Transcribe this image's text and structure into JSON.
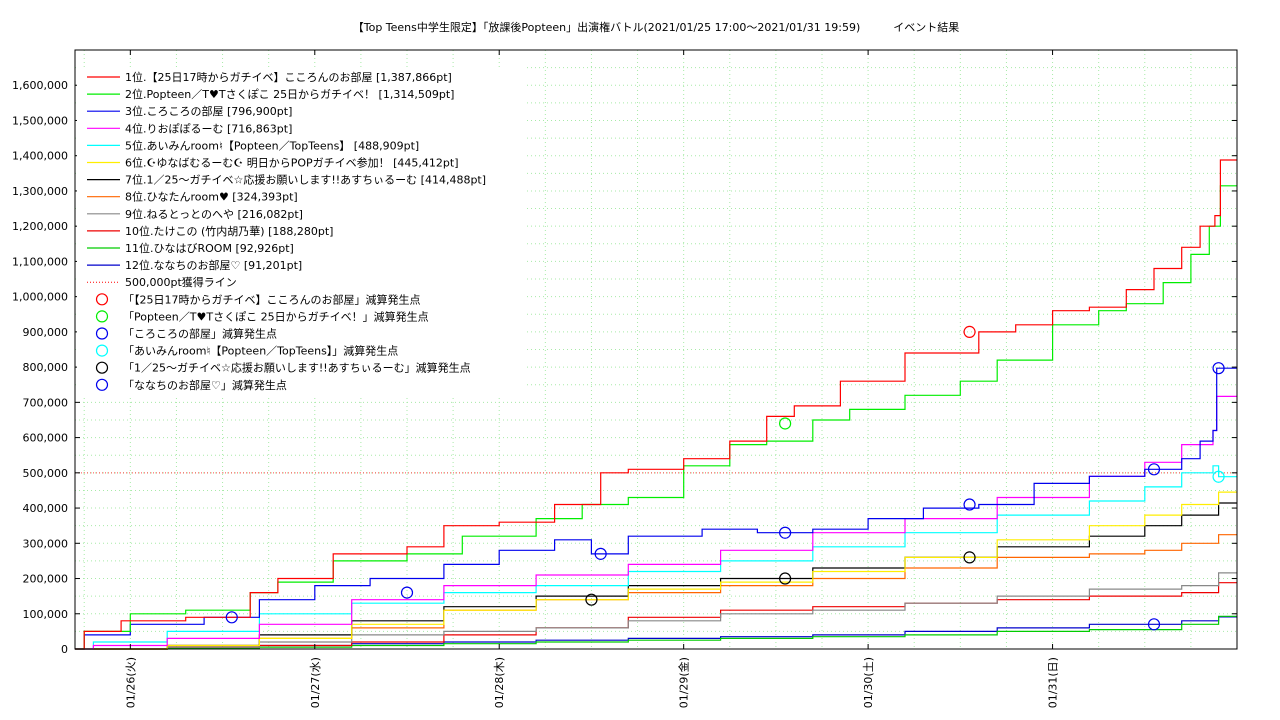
{
  "chart_data": {
    "type": "line",
    "title": "【Top Teens中学生限定】「放課後Popteen」出演権バトル(2021/01/25 17:00〜2021/01/31 19:59)　　　イベント結果",
    "xlabel": "",
    "ylabel": "",
    "xlim": [
      0.0,
      6.3
    ],
    "ylim": [
      0,
      1700000
    ],
    "grid": true,
    "legend_position": "top-left",
    "y_ticks": [
      0,
      100000,
      200000,
      300000,
      400000,
      500000,
      600000,
      700000,
      800000,
      900000,
      1000000,
      1100000,
      1200000,
      1300000,
      1400000,
      1500000,
      1600000
    ],
    "y_tick_labels": [
      "0",
      "100,000",
      "200,000",
      "300,000",
      "400,000",
      "500,000",
      "600,000",
      "700,000",
      "800,000",
      "900,000",
      "1,000,000",
      "1,100,000",
      "1,200,000",
      "1,300,000",
      "1,400,000",
      "1,500,000",
      "1,600,000"
    ],
    "x_ticks": [
      0.3,
      1.3,
      2.3,
      3.3,
      4.3,
      5.3
    ],
    "x_tick_labels": [
      "01/26(火)",
      "01/27(水)",
      "01/28(木)",
      "01/29(金)",
      "01/30(土)",
      "01/31(日)"
    ],
    "series": [
      {
        "name": "1位.【25日17時からガチイベ】こころんのお部屋 [1,387,866pt]",
        "color": "#ff0000",
        "x": [
          0.0,
          0.05,
          0.25,
          0.6,
          0.95,
          1.1,
          1.4,
          1.8,
          2.0,
          2.3,
          2.6,
          2.85,
          3.0,
          3.3,
          3.55,
          3.75,
          3.9,
          4.15,
          4.5,
          4.9,
          5.1,
          5.3,
          5.5,
          5.7,
          5.85,
          6.0,
          6.1,
          6.18,
          6.21,
          6.3
        ],
        "values": [
          0,
          50000,
          80000,
          90000,
          160000,
          200000,
          270000,
          290000,
          350000,
          360000,
          410000,
          500000,
          510000,
          540000,
          590000,
          660000,
          690000,
          760000,
          840000,
          900000,
          920000,
          960000,
          970000,
          1020000,
          1080000,
          1140000,
          1200000,
          1230000,
          1387866,
          1387866
        ]
      },
      {
        "name": "2位.Popteen／T♥Tさくぽこ 25日からガチイベ！ [1,314,509pt]",
        "color": "#00ee00",
        "x": [
          0.0,
          0.05,
          0.3,
          0.6,
          0.95,
          1.1,
          1.4,
          1.8,
          2.1,
          2.5,
          2.75,
          3.0,
          3.3,
          3.55,
          3.75,
          4.0,
          4.2,
          4.5,
          4.8,
          5.0,
          5.3,
          5.55,
          5.7,
          5.9,
          6.05,
          6.15,
          6.21,
          6.3
        ],
        "values": [
          0,
          50000,
          100000,
          110000,
          160000,
          190000,
          250000,
          270000,
          320000,
          370000,
          410000,
          430000,
          520000,
          580000,
          590000,
          650000,
          680000,
          720000,
          760000,
          820000,
          920000,
          960000,
          980000,
          1040000,
          1120000,
          1200000,
          1314509,
          1314509
        ]
      },
      {
        "name": "3位.ころころの部屋 [796,900pt]",
        "color": "#0000ee",
        "x": [
          0.0,
          0.05,
          0.3,
          0.7,
          1.0,
          1.3,
          1.6,
          2.0,
          2.3,
          2.6,
          2.8,
          3.0,
          3.4,
          3.7,
          4.0,
          4.3,
          4.6,
          4.9,
          5.2,
          5.5,
          5.8,
          6.0,
          6.1,
          6.17,
          6.19,
          6.3
        ],
        "values": [
          0,
          40000,
          70000,
          90000,
          140000,
          180000,
          200000,
          240000,
          280000,
          310000,
          270000,
          320000,
          340000,
          330000,
          340000,
          370000,
          400000,
          410000,
          470000,
          490000,
          510000,
          540000,
          590000,
          620000,
          796900,
          796900
        ]
      },
      {
        "name": "4位.りおぽぽるーむ [716,863pt]",
        "color": "#ff00ff",
        "x": [
          0.0,
          0.1,
          0.5,
          1.0,
          1.5,
          2.0,
          2.5,
          3.0,
          3.5,
          4.0,
          4.5,
          5.0,
          5.5,
          5.8,
          6.0,
          6.17,
          6.19,
          6.3
        ],
        "values": [
          0,
          10000,
          30000,
          70000,
          140000,
          180000,
          210000,
          240000,
          280000,
          330000,
          370000,
          430000,
          490000,
          530000,
          580000,
          620000,
          716863,
          716863
        ]
      },
      {
        "name": "5位.あいみんroom♮【Popteen／TopTeens】 [488,909pt]",
        "color": "#00ffff",
        "x": [
          0.0,
          0.1,
          0.5,
          1.0,
          1.5,
          2.0,
          2.5,
          3.0,
          3.5,
          4.0,
          4.5,
          5.0,
          5.5,
          5.8,
          6.0,
          6.17,
          6.2,
          6.3
        ],
        "values": [
          0,
          20000,
          50000,
          100000,
          130000,
          160000,
          180000,
          220000,
          250000,
          290000,
          330000,
          380000,
          420000,
          460000,
          500000,
          520000,
          488909,
          488909
        ]
      },
      {
        "name": "6位.☪ゆなばむるーむ☪ 明日からPOPガチイベ参加！ [445,412pt]",
        "color": "#ffee00",
        "x": [
          0.0,
          0.5,
          1.0,
          1.5,
          2.0,
          2.5,
          3.0,
          3.5,
          4.0,
          4.5,
          5.0,
          5.5,
          5.8,
          6.0,
          6.2,
          6.3
        ],
        "values": [
          0,
          10000,
          30000,
          70000,
          110000,
          140000,
          170000,
          190000,
          220000,
          260000,
          310000,
          350000,
          380000,
          410000,
          445412,
          445412
        ]
      },
      {
        "name": "7位.1／25〜ガチイベ☆応援お願いします!!あすちぃるーむ [414,488pt]",
        "color": "#000000",
        "x": [
          0.0,
          0.5,
          1.0,
          1.5,
          2.0,
          2.5,
          3.0,
          3.5,
          4.0,
          4.5,
          5.0,
          5.5,
          5.8,
          6.0,
          6.2,
          6.3
        ],
        "values": [
          0,
          10000,
          40000,
          80000,
          120000,
          150000,
          180000,
          200000,
          230000,
          260000,
          290000,
          320000,
          350000,
          380000,
          414488,
          414488
        ]
      },
      {
        "name": "8位.ひなたんroom♥ [324,393pt]",
        "color": "#ff6600",
        "x": [
          0.0,
          0.5,
          1.0,
          1.5,
          2.0,
          2.5,
          3.0,
          3.5,
          4.0,
          4.5,
          5.0,
          5.5,
          5.8,
          6.0,
          6.2,
          6.3
        ],
        "values": [
          0,
          10000,
          30000,
          60000,
          110000,
          140000,
          160000,
          180000,
          200000,
          230000,
          260000,
          270000,
          280000,
          300000,
          324393,
          324393
        ]
      },
      {
        "name": "9位.ねるとっとのへや [216,082pt]",
        "color": "#888888",
        "x": [
          0.0,
          0.5,
          1.0,
          1.5,
          2.0,
          2.5,
          3.0,
          3.5,
          4.0,
          4.5,
          5.0,
          5.5,
          6.0,
          6.2,
          6.3
        ],
        "values": [
          0,
          5000,
          20000,
          40000,
          50000,
          60000,
          80000,
          100000,
          110000,
          130000,
          150000,
          170000,
          180000,
          216082,
          216082
        ]
      },
      {
        "name": "10位.たけこの (竹内胡乃華) [188,280pt]",
        "color": "#ee0000",
        "x": [
          0.0,
          0.5,
          1.0,
          1.5,
          2.0,
          2.5,
          3.0,
          3.5,
          4.0,
          4.5,
          5.0,
          5.5,
          6.0,
          6.2,
          6.3
        ],
        "values": [
          0,
          5000,
          10000,
          20000,
          40000,
          60000,
          90000,
          110000,
          120000,
          130000,
          140000,
          150000,
          160000,
          188280,
          188280
        ]
      },
      {
        "name": "11位.ひなはびROOM [92,926pt]",
        "color": "#00cc00",
        "x": [
          0.0,
          0.5,
          1.0,
          1.5,
          2.0,
          2.5,
          3.0,
          3.5,
          4.0,
          4.5,
          5.0,
          5.5,
          6.0,
          6.2,
          6.3
        ],
        "values": [
          0,
          2000,
          5000,
          10000,
          15000,
          20000,
          25000,
          30000,
          35000,
          40000,
          50000,
          55000,
          70000,
          92926,
          92926
        ]
      },
      {
        "name": "12位.ななちのお部屋♡ [91,201pt]",
        "color": "#0000cc",
        "x": [
          0.0,
          0.5,
          1.0,
          1.5,
          2.0,
          2.5,
          3.0,
          3.5,
          4.0,
          4.5,
          5.0,
          5.5,
          6.0,
          6.2,
          6.3
        ],
        "values": [
          0,
          5000,
          10000,
          15000,
          20000,
          25000,
          30000,
          35000,
          40000,
          50000,
          60000,
          70000,
          80000,
          91201,
          91201
        ]
      }
    ],
    "reference_line": {
      "name": "500,000pt獲得ライン",
      "value": 500000,
      "color": "#ff0000"
    },
    "marker_series": [
      {
        "name": "「【25日17時からガチイベ】こころんのお部屋」減算発生点",
        "color": "#ff0000",
        "points": [
          {
            "x": 4.85,
            "y": 900000
          }
        ]
      },
      {
        "name": "「Popteen／T♥Tさくぽこ 25日からガチイベ！」減算発生点",
        "color": "#00ee00",
        "points": [
          {
            "x": 3.85,
            "y": 640000
          }
        ]
      },
      {
        "name": "「ころころの部屋」減算発生点",
        "color": "#0000ee",
        "points": [
          {
            "x": 2.85,
            "y": 270000
          },
          {
            "x": 3.85,
            "y": 330000
          },
          {
            "x": 4.85,
            "y": 410000
          },
          {
            "x": 5.85,
            "y": 510000
          },
          {
            "x": 6.2,
            "y": 796900
          }
        ]
      },
      {
        "name": "「あいみんroom♮【Popteen／TopTeens】」減算発生点",
        "color": "#00ffff",
        "points": [
          {
            "x": 6.2,
            "y": 488909
          }
        ]
      },
      {
        "name": "「1／25〜ガチイベ☆応援お願いします!!あすちぃるーむ」減算発生点",
        "color": "#000000",
        "points": [
          {
            "x": 2.8,
            "y": 140000
          },
          {
            "x": 3.85,
            "y": 200000
          },
          {
            "x": 4.85,
            "y": 260000
          }
        ]
      },
      {
        "name": "「ななちのお部屋♡」減算発生点",
        "color": "#0000ee",
        "points": [
          {
            "x": 0.85,
            "y": 90000
          },
          {
            "x": 1.8,
            "y": 160000
          },
          {
            "x": 5.85,
            "y": 70000
          }
        ]
      }
    ]
  }
}
